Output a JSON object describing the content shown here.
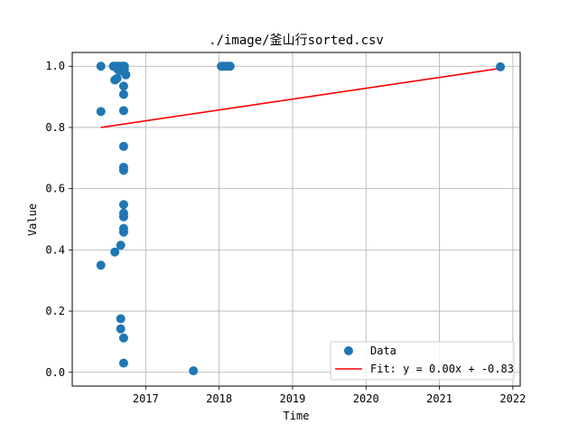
{
  "chart_data": {
    "type": "scatter",
    "title": "./image/釜山行sorted.csv",
    "xlabel": "Time",
    "ylabel": "Value",
    "xlim": [
      2016.0,
      2022.1
    ],
    "ylim": [
      -0.045,
      1.045
    ],
    "x_ticks": [
      2017,
      2018,
      2019,
      2020,
      2021,
      2022
    ],
    "x_tick_labels": [
      "2017",
      "2018",
      "2019",
      "2020",
      "2021",
      "2022"
    ],
    "y_ticks": [
      0.0,
      0.2,
      0.4,
      0.6,
      0.8,
      1.0
    ],
    "y_tick_labels": [
      "0.0",
      "0.2",
      "0.4",
      "0.6",
      "0.8",
      "1.0"
    ],
    "grid": true,
    "legend_position": "lower-right",
    "series": [
      {
        "name": "Data",
        "type": "scatter",
        "color": "#1f77b4",
        "points": [
          [
            2016.39,
            1.0
          ],
          [
            2016.39,
            0.852
          ],
          [
            2016.39,
            0.35
          ],
          [
            2016.56,
            1.0
          ],
          [
            2016.58,
            1.0
          ],
          [
            2016.6,
            1.0
          ],
          [
            2016.63,
            1.0
          ],
          [
            2016.65,
            1.0
          ],
          [
            2016.67,
            1.0
          ],
          [
            2016.69,
            1.0
          ],
          [
            2016.71,
            1.0
          ],
          [
            2016.62,
            0.99
          ],
          [
            2016.66,
            0.985
          ],
          [
            2016.71,
            0.99
          ],
          [
            2016.58,
            0.955
          ],
          [
            2016.61,
            0.96
          ],
          [
            2016.73,
            0.972
          ],
          [
            2016.7,
            0.935
          ],
          [
            2016.7,
            0.908
          ],
          [
            2016.7,
            0.855
          ],
          [
            2016.7,
            0.738
          ],
          [
            2016.7,
            0.67
          ],
          [
            2016.7,
            0.66
          ],
          [
            2016.7,
            0.548
          ],
          [
            2016.7,
            0.52
          ],
          [
            2016.7,
            0.508
          ],
          [
            2016.7,
            0.47
          ],
          [
            2016.7,
            0.458
          ],
          [
            2016.58,
            0.393
          ],
          [
            2016.66,
            0.415
          ],
          [
            2016.66,
            0.175
          ],
          [
            2016.66,
            0.142
          ],
          [
            2016.7,
            0.112
          ],
          [
            2016.7,
            0.03
          ],
          [
            2017.65,
            0.005
          ],
          [
            2018.03,
            1.0
          ],
          [
            2018.06,
            1.0
          ],
          [
            2018.09,
            1.0
          ],
          [
            2018.12,
            1.0
          ],
          [
            2018.15,
            1.0
          ],
          [
            2021.83,
            0.998
          ]
        ]
      },
      {
        "name": "Fit: y = 0.00x + -0.83",
        "type": "line",
        "color": "#ff0000",
        "points": [
          [
            2016.39,
            0.8
          ],
          [
            2021.83,
            0.993
          ]
        ]
      }
    ]
  }
}
